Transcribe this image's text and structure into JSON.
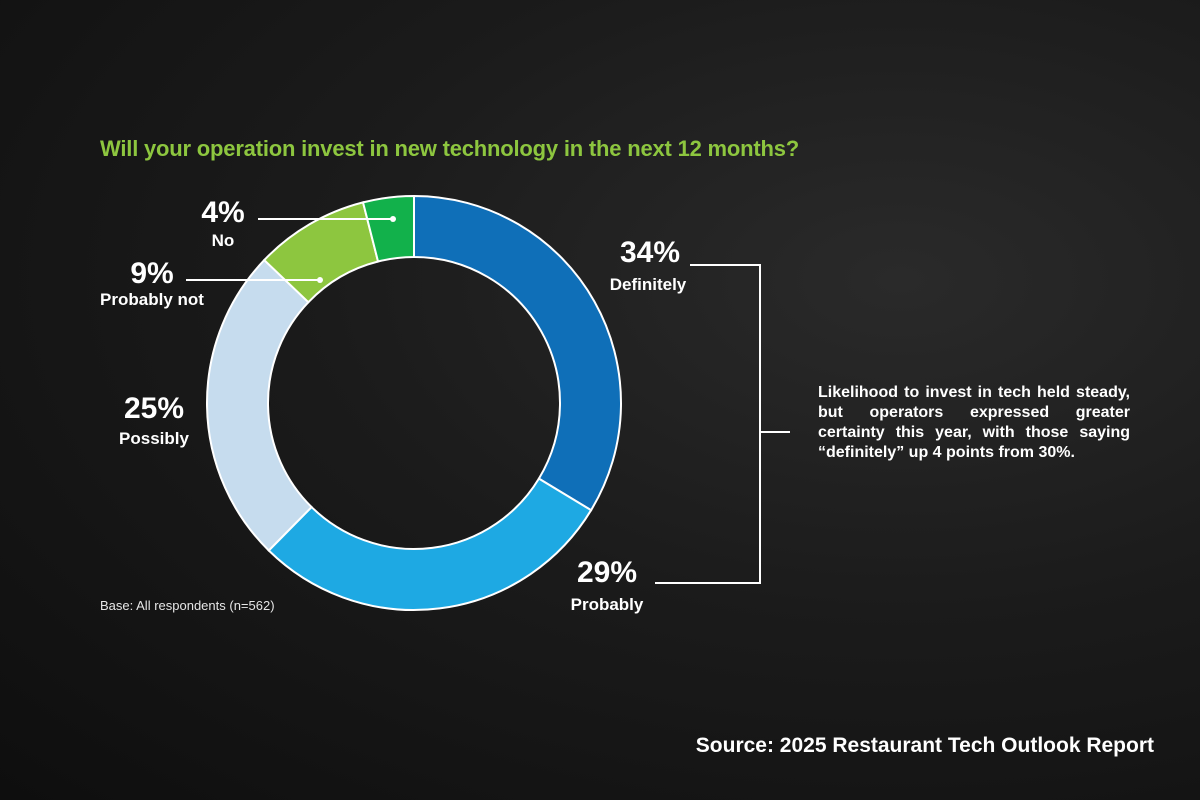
{
  "chart_data": {
    "type": "pie",
    "title": "Will your operation invest in new technology in the next 12 months?",
    "slices": [
      {
        "label": "Definitely",
        "value": 34,
        "display": "34%",
        "color": "#0f6fb8"
      },
      {
        "label": "Probably",
        "value": 29,
        "display": "29%",
        "color": "#1ea9e3"
      },
      {
        "label": "Possibly",
        "value": 25,
        "display": "25%",
        "color": "#c6dcee"
      },
      {
        "label": "Probably not",
        "value": 9,
        "display": "9%",
        "color": "#8dc63f"
      },
      {
        "label": "No",
        "value": 4,
        "display": "4%",
        "color": "#12b14b"
      }
    ],
    "colors": {
      "title": "#8dc63f",
      "text": "#ffffff",
      "leader_line": "#ffffff"
    }
  },
  "annotation": "Likelihood to invest in tech held steady, but operators expressed greater certainty this year, with those saying “definitely” up 4 points from 30%.",
  "base_note": "Base: All respondents (n=562)",
  "source": "Source: 2025 Restaurant Tech Outlook Report"
}
